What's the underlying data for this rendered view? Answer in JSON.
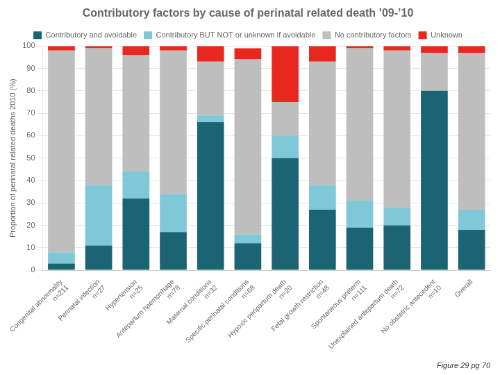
{
  "chart_data": {
    "type": "bar",
    "title": "Contributory factors by cause of perinatal related death ’09-’10",
    "ylabel": "Proportion of perinatal related deaths 2010 (%)",
    "annotation": "Figure 29 pg 70",
    "categories": [
      "Congenital abnormality\nn=211",
      "Perinatal infection\nn=27",
      "Hypertension\nn=25",
      "Antepartum haemorrhage\nn=78",
      "Maternal conditions\nn=32",
      "Specific perinatal conditions\nn=68",
      "Hypoxic peripartum death\nn=20",
      "Fetal growth restriction\nn=48",
      "Spontaneous preterm\nn=111",
      "Unexplained antepartum death\nn=72",
      "No obstetric antecedent\nn=10",
      "Overall"
    ],
    "series": [
      {
        "name": "Contributory and avoidable",
        "color": "#1a6473",
        "values": [
          3,
          11,
          32,
          17,
          66,
          12,
          50,
          27,
          19,
          20,
          80,
          18
        ]
      },
      {
        "name": "Contributory BUT NOT or unknown if avoidable",
        "color": "#7ec8d8",
        "values": [
          5,
          27,
          12,
          17,
          3,
          4,
          10,
          11,
          12,
          8,
          0,
          9
        ]
      },
      {
        "name": "No contributory factors",
        "color": "#bebebe",
        "values": [
          90,
          61,
          52,
          64,
          24,
          78,
          15,
          55,
          68,
          70,
          17,
          70
        ]
      },
      {
        "name": "Unknown",
        "color": "#e8281e",
        "values": [
          2,
          1,
          4,
          2,
          7,
          5,
          25,
          7,
          1,
          2,
          3,
          3
        ]
      }
    ],
    "stacked": true,
    "ylim": [
      0,
      100
    ],
    "yticks": [
      0,
      10,
      20,
      30,
      40,
      50,
      60,
      70,
      80,
      90,
      100
    ],
    "grid": true,
    "legend": "top"
  }
}
